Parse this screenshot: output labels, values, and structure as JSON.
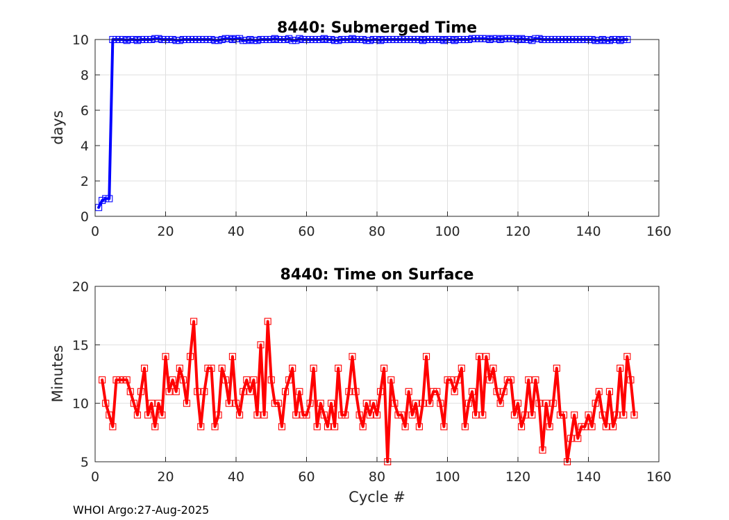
{
  "chart_data": [
    {
      "type": "line",
      "title": "8440: Submerged Time",
      "xlabel": "",
      "ylabel": "days",
      "xlim": [
        0,
        160
      ],
      "ylim": [
        0,
        10
      ],
      "xticks": [
        "0",
        "20",
        "40",
        "60",
        "80",
        "100",
        "120",
        "140",
        "160"
      ],
      "yticks": [
        "0",
        "2",
        "4",
        "6",
        "8",
        "10"
      ],
      "grid": true,
      "color": "#0000ff",
      "marker": "square",
      "x_start": 1,
      "values": [
        0.5,
        0.9,
        1.0,
        1.0,
        10.0,
        10.0,
        10.0,
        10.0,
        9.95,
        10.0,
        10.0,
        9.95,
        10.0,
        10.0,
        10.0,
        10.0,
        10.05,
        10.05,
        10.0,
        10.0,
        10.0,
        10.0,
        9.95,
        9.95,
        10.0,
        10.0,
        10.0,
        10.0,
        10.0,
        10.0,
        10.0,
        10.0,
        10.0,
        9.95,
        9.95,
        10.0,
        10.05,
        10.05,
        10.0,
        10.05,
        10.05,
        9.95,
        9.95,
        10.0,
        9.95,
        9.95,
        10.0,
        10.0,
        10.0,
        10.0,
        10.05,
        10.0,
        10.0,
        10.0,
        10.05,
        9.95,
        9.95,
        10.05,
        10.0,
        10.0,
        10.0,
        10.0,
        10.0,
        10.0,
        10.05,
        10.0,
        10.0,
        9.95,
        9.95,
        10.0,
        10.0,
        10.0,
        10.05,
        10.0,
        10.0,
        10.0,
        9.95,
        9.95,
        10.0,
        10.0,
        9.95,
        10.0,
        10.0,
        10.0,
        10.0,
        10.0,
        10.0,
        10.0,
        10.0,
        10.0,
        10.0,
        10.0,
        9.95,
        10.0,
        10.0,
        10.0,
        10.0,
        10.0,
        9.95,
        10.0,
        10.0,
        9.95,
        10.0,
        10.0,
        10.0,
        10.0,
        10.05,
        10.05,
        10.05,
        10.05,
        10.05,
        10.0,
        10.05,
        10.05,
        10.0,
        10.05,
        10.05,
        10.05,
        10.05,
        10.0,
        10.05,
        10.0,
        10.0,
        9.95,
        10.05,
        10.05,
        10.0,
        10.0,
        10.0,
        10.0,
        10.0,
        10.0,
        10.0,
        10.0,
        10.0,
        10.0,
        10.0,
        10.0,
        10.0,
        10.0,
        10.0,
        9.95,
        9.95,
        10.0,
        9.95,
        9.95,
        10.0,
        10.0,
        9.95,
        10.0,
        10.0
      ]
    },
    {
      "type": "line",
      "title": "8440: Time on Surface",
      "xlabel": "Cycle #",
      "ylabel": "Minutes",
      "xlim": [
        0,
        160
      ],
      "ylim": [
        5,
        20
      ],
      "xticks": [
        "0",
        "20",
        "40",
        "60",
        "80",
        "100",
        "120",
        "140",
        "160"
      ],
      "yticks": [
        "5",
        "10",
        "15",
        "20"
      ],
      "grid": true,
      "color": "#ff0000",
      "marker": "square",
      "x_start": 2,
      "values": [
        12,
        10,
        9,
        8,
        12,
        12,
        12,
        12,
        11,
        10,
        9,
        11,
        13,
        9,
        10,
        8,
        10,
        9,
        14,
        11,
        12,
        11,
        13,
        12,
        10,
        14,
        17,
        11,
        8,
        11,
        13,
        13,
        8,
        9,
        13,
        12,
        10,
        14,
        10,
        9,
        11,
        12,
        11,
        12,
        9,
        15,
        9,
        17,
        12,
        10,
        10,
        8,
        11,
        12,
        13,
        9,
        11,
        9,
        9,
        10,
        13,
        8,
        10,
        9,
        8,
        10,
        8,
        13,
        9,
        9,
        11,
        14,
        11,
        9,
        8,
        10,
        9,
        10,
        9,
        11,
        13,
        5,
        12,
        10,
        9,
        9,
        8,
        11,
        9,
        10,
        8,
        10,
        14,
        10,
        11,
        11,
        10,
        8,
        12,
        12,
        11,
        12,
        13,
        8,
        10,
        11,
        9,
        14,
        9,
        14,
        12,
        13,
        11,
        10,
        11,
        12,
        12,
        9,
        10,
        8,
        9,
        12,
        9,
        12,
        10,
        6,
        10,
        8,
        10,
        13,
        9,
        9,
        5,
        7,
        9,
        7,
        8,
        8,
        9,
        8,
        10,
        11,
        9,
        8,
        11,
        8,
        9,
        13,
        9,
        14,
        12,
        9
      ]
    }
  ],
  "footer": "WHOI Argo:27-Aug-2025"
}
